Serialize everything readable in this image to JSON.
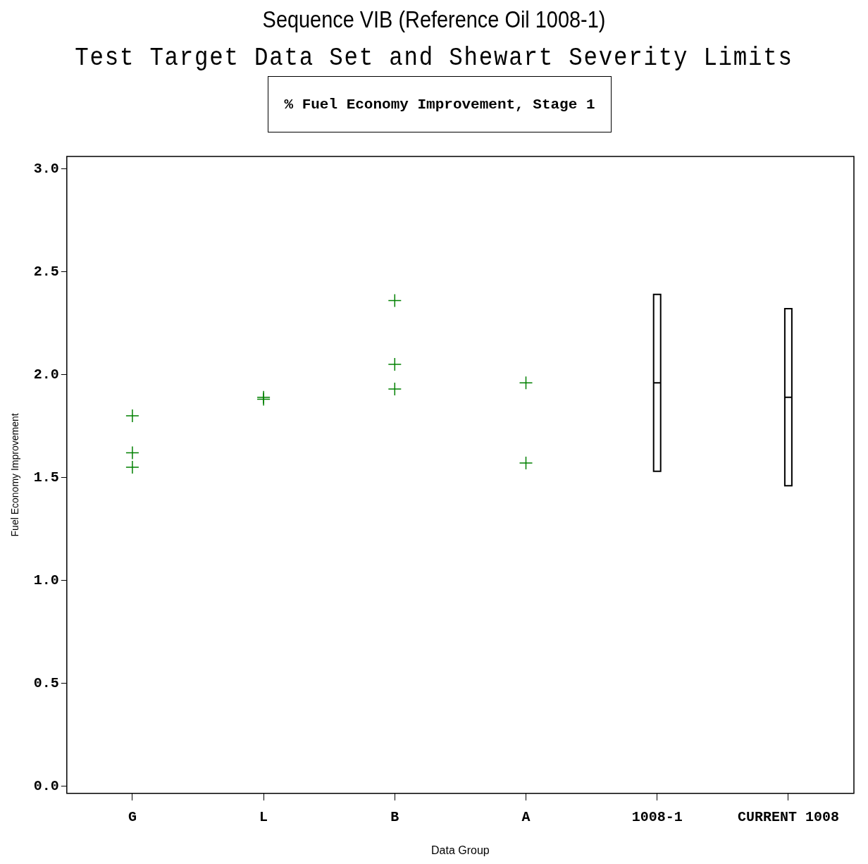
{
  "chart_data": {
    "type": "scatter",
    "title": "Sequence VIB (Reference Oil 1008-1)",
    "subtitle": "Test Target Data Set and Shewart Severity Limits",
    "annotations": [
      "% Fuel Economy Improvement, Stage 1"
    ],
    "xlabel": "Data Group",
    "ylabel": "Fuel Economy Improvement",
    "categories": [
      "G",
      "L",
      "B",
      "A",
      "1008-1",
      "CURRENT 1008"
    ],
    "ylim": [
      -0.035,
      3.06
    ],
    "yticks": [
      {
        "value": 0,
        "label": "0.0"
      },
      {
        "value": 0.5,
        "label": "0.5"
      },
      {
        "value": 1,
        "label": "1.0"
      },
      {
        "value": 1.5,
        "label": "1.5"
      },
      {
        "value": 2,
        "label": "2.0"
      },
      {
        "value": 2.5,
        "label": "2.5"
      },
      {
        "value": 3,
        "label": "3.0"
      }
    ],
    "grid": false,
    "legend": false,
    "marker": "cross",
    "series": [
      {
        "type": "scatter",
        "color": "#008000",
        "x": [
          "G",
          "G",
          "G",
          "L",
          "L",
          "B",
          "B",
          "B",
          "A",
          "A"
        ],
        "values": [
          1.8,
          1.62,
          1.55,
          1.89,
          1.88,
          2.36,
          2.05,
          1.93,
          1.96,
          1.57
        ]
      },
      {
        "type": "box",
        "color": "#000000",
        "boxes": [
          null,
          null,
          null,
          null,
          {
            "low": 1.53,
            "q1": 1.53,
            "median": 1.96,
            "q3": 2.39,
            "high": 2.39
          },
          {
            "low": 1.46,
            "q1": 1.46,
            "median": 1.89,
            "q3": 2.32,
            "high": 2.32
          }
        ]
      }
    ]
  }
}
